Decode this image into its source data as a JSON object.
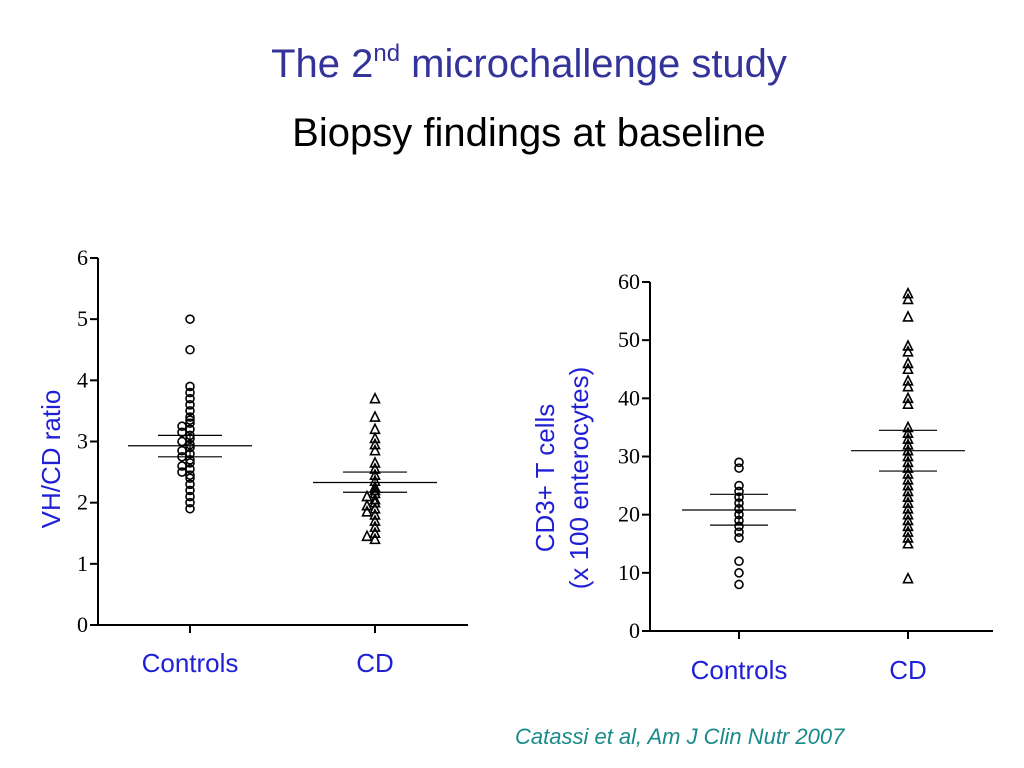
{
  "slide": {
    "title_main": "The 2",
    "title_sup": "nd",
    "title_rest": " microchallenge study",
    "subtitle": "Biopsy findings at baseline",
    "citation": "Catassi et al, Am J Clin Nutr 2007"
  },
  "colors": {
    "title": "#333399",
    "axis_label": "#1f1fd6",
    "citation": "#1a8a8a"
  },
  "chart_data": [
    {
      "type": "scatter",
      "ylabel": "VH/CD ratio",
      "ylim": [
        0,
        6
      ],
      "yticks": [
        "0",
        "1",
        "2",
        "3",
        "4",
        "5",
        "6"
      ],
      "categories": [
        "Controls",
        "CD"
      ],
      "series": [
        {
          "marker": "circle",
          "values": [
            5.0,
            4.5,
            3.9,
            3.8,
            3.7,
            3.6,
            3.5,
            3.4,
            3.35,
            3.3,
            3.25,
            3.2,
            3.15,
            3.1,
            3.05,
            3.0,
            2.95,
            2.9,
            2.85,
            2.8,
            2.75,
            2.7,
            2.65,
            2.6,
            2.55,
            2.5,
            2.45,
            2.4,
            2.3,
            2.2,
            2.1,
            2.0,
            1.9
          ],
          "mean": 2.93,
          "sem_upper": 3.1,
          "sem_lower": 2.75
        },
        {
          "marker": "triangle",
          "values": [
            3.7,
            3.4,
            3.2,
            3.05,
            2.95,
            2.85,
            2.65,
            2.55,
            2.45,
            2.35,
            2.25,
            2.2,
            2.15,
            2.1,
            2.05,
            2.0,
            1.95,
            1.9,
            1.85,
            1.8,
            1.7,
            1.6,
            1.5,
            1.45,
            1.4
          ],
          "mean": 2.33,
          "sem_upper": 2.5,
          "sem_lower": 2.17
        }
      ]
    },
    {
      "type": "scatter",
      "ylabel": "CD3+ T cells\n(x 100 enterocytes)",
      "ylabel_lines": [
        "CD3+ T cells",
        "(x 100 enterocytes)"
      ],
      "ylim": [
        0,
        60
      ],
      "yticks": [
        "0",
        "10",
        "20",
        "30",
        "40",
        "50",
        "60"
      ],
      "categories": [
        "Controls",
        "CD"
      ],
      "series": [
        {
          "marker": "circle",
          "values": [
            29,
            28,
            25,
            24,
            23,
            22,
            21,
            20,
            19,
            18,
            17,
            16,
            12,
            10,
            8
          ],
          "mean": 20.8,
          "sem_upper": 23.5,
          "sem_lower": 18.2
        },
        {
          "marker": "triangle",
          "values": [
            58,
            57,
            54,
            49,
            48,
            46,
            45,
            43,
            42,
            40,
            39,
            35,
            34,
            33,
            32,
            31,
            30,
            29,
            28,
            27,
            26,
            25,
            24,
            23,
            22,
            21,
            20,
            19,
            18,
            17,
            16,
            15,
            9
          ],
          "mean": 31,
          "sem_upper": 34.5,
          "sem_lower": 27.5
        }
      ]
    }
  ]
}
